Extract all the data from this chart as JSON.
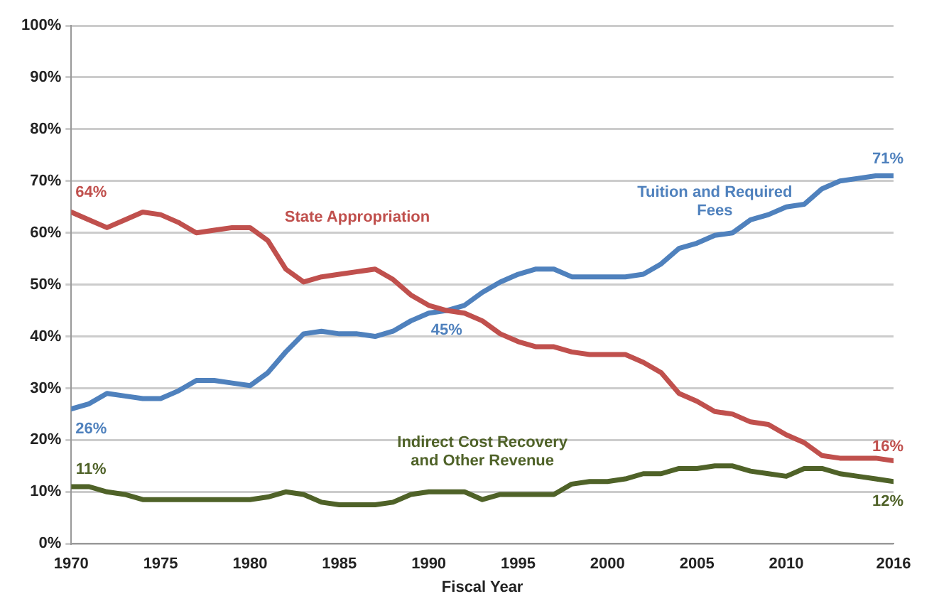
{
  "chart_data": {
    "type": "line",
    "xlabel": "Fiscal Year",
    "x": [
      1970,
      1971,
      1972,
      1973,
      1974,
      1975,
      1976,
      1977,
      1978,
      1979,
      1980,
      1981,
      1982,
      1983,
      1984,
      1985,
      1986,
      1987,
      1988,
      1989,
      1990,
      1991,
      1992,
      1993,
      1994,
      1995,
      1996,
      1997,
      1998,
      1999,
      2000,
      2001,
      2002,
      2003,
      2004,
      2005,
      2006,
      2007,
      2008,
      2009,
      2010,
      2011,
      2012,
      2013,
      2014,
      2015,
      2016
    ],
    "series": [
      {
        "name": "State Appropriation",
        "color": "#c0504d",
        "values": [
          64,
          62.5,
          61,
          62.5,
          64,
          63.5,
          62,
          60,
          60.5,
          61,
          61,
          58.5,
          53,
          50.5,
          51.5,
          52,
          52.5,
          53,
          51,
          48,
          46,
          45,
          44.5,
          43,
          40.5,
          39,
          38,
          38,
          37,
          36.5,
          36.5,
          36.5,
          35,
          33,
          29,
          27.5,
          25.5,
          25,
          23.5,
          23,
          21,
          19.5,
          17,
          16.5,
          16.5,
          16.5,
          16
        ]
      },
      {
        "name": "Tuition and Required Fees",
        "color": "#4f81bd",
        "values": [
          26,
          27,
          29,
          28.5,
          28,
          28,
          29.5,
          31.5,
          31.5,
          31,
          30.5,
          33,
          37,
          40.5,
          41,
          40.5,
          40.5,
          40,
          41,
          43,
          44.5,
          45,
          46,
          48.5,
          50.5,
          52,
          53,
          53,
          51.5,
          51.5,
          51.5,
          51.5,
          52,
          54,
          57,
          58,
          59.5,
          60,
          62.5,
          63.5,
          65,
          65.5,
          68.5,
          70,
          70.5,
          71,
          71
        ]
      },
      {
        "name": "Indirect Cost Recovery and Other Revenue",
        "color": "#4f6228",
        "values": [
          11,
          11,
          10,
          9.5,
          8.5,
          8.5,
          8.5,
          8.5,
          8.5,
          8.5,
          8.5,
          9,
          10,
          9.5,
          8,
          7.5,
          7.5,
          7.5,
          8,
          9.5,
          10,
          10,
          10,
          8.5,
          9.5,
          9.5,
          9.5,
          9.5,
          11.5,
          12,
          12,
          12.5,
          13.5,
          13.5,
          14.5,
          14.5,
          15,
          15,
          14,
          13.5,
          13,
          14.5,
          14.5,
          13.5,
          13,
          12.5,
          12
        ]
      }
    ],
    "annotations": [
      {
        "text": "64%",
        "x": 1970,
        "y": 64
      },
      {
        "text": "26%",
        "x": 1970,
        "y": 26
      },
      {
        "text": "11%",
        "x": 1970,
        "y": 11
      },
      {
        "text": "45%",
        "x": 1991,
        "y": 45
      },
      {
        "text": "71%",
        "x": 2016,
        "y": 71
      },
      {
        "text": "16%",
        "x": 2016,
        "y": 16
      },
      {
        "text": "12%",
        "x": 2016,
        "y": 12
      }
    ],
    "xlim": [
      1970,
      2016
    ],
    "xticks": [
      1970,
      1975,
      1980,
      1985,
      1990,
      1995,
      2000,
      2005,
      2010,
      2016
    ],
    "ylim": [
      0,
      100
    ],
    "yticks": [
      {
        "value": 0,
        "label": "0%"
      },
      {
        "value": 10,
        "label": "10%"
      },
      {
        "value": 20,
        "label": "20%"
      },
      {
        "value": 30,
        "label": "30%"
      },
      {
        "value": 40,
        "label": "40%"
      },
      {
        "value": 50,
        "label": "50%"
      },
      {
        "value": 60,
        "label": "60%"
      },
      {
        "value": 70,
        "label": "70%"
      },
      {
        "value": 80,
        "label": "80%"
      },
      {
        "value": 90,
        "label": "90%"
      },
      {
        "value": 100,
        "label": "100%"
      }
    ],
    "grid": "y",
    "legend": false,
    "marker": "none",
    "line_style": "solid"
  }
}
